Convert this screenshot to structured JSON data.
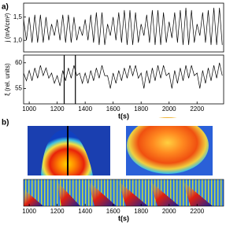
{
  "panel_labels": [
    "a)",
    "b)"
  ],
  "chart_data": [
    {
      "type": "line",
      "ylabel": "j (mA/cm²)",
      "xlim": [
        960,
        2390
      ],
      "ylim": [
        0.75,
        1.8
      ],
      "yticks": [
        {
          "value": 1.0,
          "label": "1,0"
        },
        {
          "value": 1.5,
          "label": "1,5"
        }
      ],
      "x": [
        960,
        980,
        1000,
        1020,
        1040,
        1060,
        1080,
        1100,
        1120,
        1140,
        1160,
        1180,
        1200,
        1220,
        1240,
        1260,
        1280,
        1300,
        1320,
        1340,
        1360,
        1380,
        1400,
        1420,
        1440,
        1460,
        1480,
        1500,
        1520,
        1540,
        1560,
        1580,
        1600,
        1620,
        1640,
        1660,
        1680,
        1700,
        1720,
        1740,
        1760,
        1780,
        1800,
        1820,
        1840,
        1860,
        1880,
        1900,
        1920,
        1940,
        1960,
        1980,
        2000,
        2020,
        2040,
        2060,
        2080,
        2100,
        2120,
        2140,
        2160,
        2180,
        2200,
        2220,
        2240,
        2260,
        2280,
        2300,
        2320,
        2340,
        2360,
        2380
      ],
      "series": [
        {
          "color": "#000000",
          "values": [
            1.45,
            1.0,
            1.5,
            0.95,
            1.55,
            0.95,
            1.55,
            0.95,
            1.5,
            1.0,
            1.35,
            1.1,
            1.45,
            1.0,
            1.55,
            0.95,
            1.55,
            0.95,
            1.5,
            1.0,
            1.3,
            1.1,
            1.45,
            1.0,
            1.55,
            0.95,
            1.6,
            0.9,
            1.6,
            0.9,
            1.35,
            1.1,
            1.5,
            1.0,
            1.6,
            0.95,
            1.65,
            0.9,
            1.65,
            0.9,
            1.6,
            0.95,
            1.35,
            1.1,
            1.55,
            0.95,
            1.65,
            0.9,
            1.65,
            0.9,
            1.6,
            0.95,
            1.4,
            1.05,
            1.6,
            0.95,
            1.65,
            0.9,
            1.7,
            0.9,
            1.65,
            0.95,
            1.35,
            1.1,
            1.6,
            0.95,
            1.65,
            0.9,
            1.7,
            0.9,
            1.7,
            0.9
          ]
        }
      ]
    },
    {
      "type": "line",
      "ylabel": "ξ (rel. units)",
      "xlabel": "t(s)",
      "xlim": [
        960,
        2390
      ],
      "ylim": [
        52,
        61.5
      ],
      "yticks": [
        55,
        60
      ],
      "xticks": [
        1000,
        1200,
        1400,
        1600,
        1800,
        2000,
        2200
      ],
      "vlines": [
        1250,
        1330
      ],
      "x": [
        960,
        980,
        1000,
        1020,
        1040,
        1060,
        1080,
        1100,
        1120,
        1140,
        1160,
        1180,
        1200,
        1220,
        1240,
        1260,
        1280,
        1300,
        1320,
        1340,
        1360,
        1380,
        1400,
        1420,
        1440,
        1460,
        1480,
        1500,
        1520,
        1540,
        1560,
        1580,
        1600,
        1620,
        1640,
        1660,
        1680,
        1700,
        1720,
        1740,
        1760,
        1780,
        1800,
        1820,
        1840,
        1860,
        1880,
        1900,
        1920,
        1940,
        1960,
        1980,
        2000,
        2020,
        2040,
        2060,
        2080,
        2100,
        2120,
        2140,
        2160,
        2180,
        2200,
        2220,
        2240,
        2260,
        2280,
        2300,
        2320,
        2340,
        2360,
        2380
      ],
      "series": [
        {
          "color": "#000000",
          "values": [
            58,
            56.5,
            58.5,
            56.5,
            59,
            57,
            59.5,
            57.5,
            59,
            57,
            58,
            56,
            57.5,
            55.5,
            58.5,
            56.5,
            59,
            57,
            59.5,
            57.5,
            58,
            56,
            58,
            56,
            58.5,
            56.5,
            59,
            57,
            59.5,
            57.5,
            57.5,
            55,
            58,
            56,
            58.5,
            56.5,
            59,
            57,
            59.5,
            57.5,
            59.5,
            57,
            58,
            55,
            58.5,
            56,
            59,
            56.5,
            59.5,
            57,
            59.5,
            57.5,
            58,
            55,
            58.5,
            56,
            59,
            56.5,
            59.5,
            57,
            59.5,
            57.5,
            58,
            55,
            58.5,
            56,
            59,
            56.5,
            59.5,
            57,
            60,
            57.5
          ]
        }
      ]
    },
    {
      "type": "image",
      "xlabel": "t(s)",
      "xlim": [
        960,
        2390
      ],
      "xticks": [
        1000,
        1200,
        1400,
        1600,
        1800,
        2000,
        2200
      ]
    }
  ]
}
